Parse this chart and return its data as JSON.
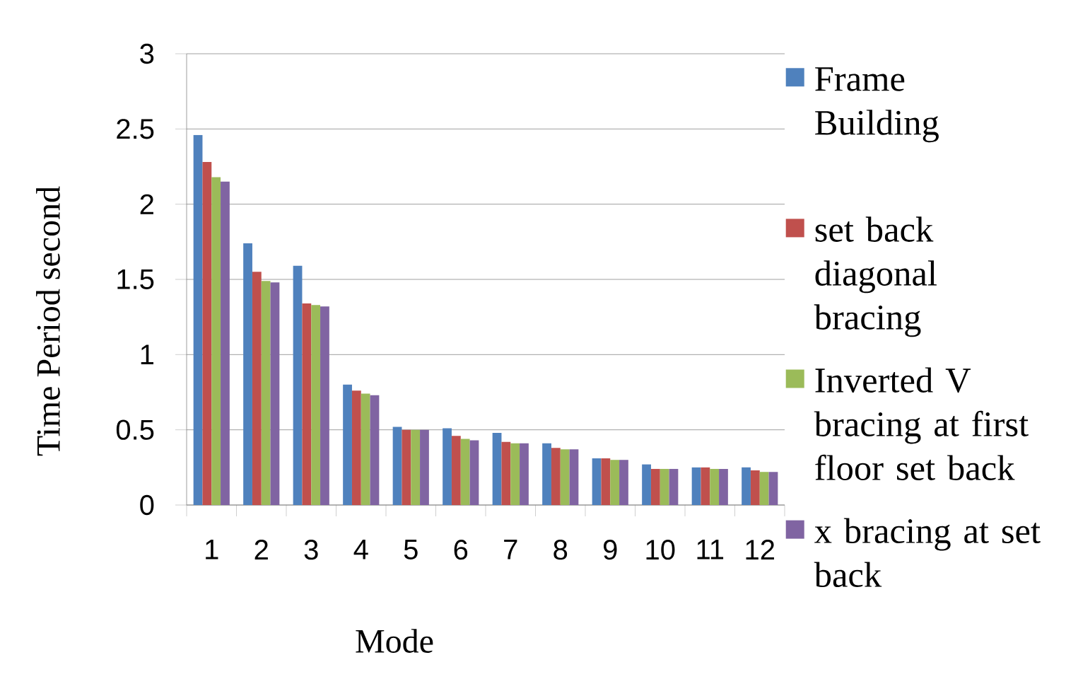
{
  "chart_data": {
    "type": "bar",
    "xlabel": "Mode",
    "ylabel": "Time Period second",
    "categories": [
      "1",
      "2",
      "3",
      "4",
      "5",
      "6",
      "7",
      "8",
      "9",
      "10",
      "11",
      "12"
    ],
    "ylim": [
      0,
      3
    ],
    "yticks": [
      0,
      0.5,
      1,
      1.5,
      2,
      2.5,
      3
    ],
    "grid": "y",
    "legend": "right",
    "series": [
      {
        "name": "Frame Building",
        "color": "#4f81bd",
        "values": [
          2.46,
          1.74,
          1.59,
          0.8,
          0.52,
          0.51,
          0.48,
          0.41,
          0.31,
          0.27,
          0.25,
          0.25
        ]
      },
      {
        "name": "set back diagonal bracing",
        "color": "#c0504d",
        "values": [
          2.28,
          1.55,
          1.34,
          0.76,
          0.5,
          0.46,
          0.42,
          0.38,
          0.31,
          0.24,
          0.25,
          0.23
        ]
      },
      {
        "name": "Inverted V bracing at first floor set back",
        "color": "#9bbb59",
        "values": [
          2.18,
          1.49,
          1.33,
          0.74,
          0.5,
          0.44,
          0.41,
          0.37,
          0.3,
          0.24,
          0.24,
          0.22
        ]
      },
      {
        "name": "x bracing at set back",
        "color": "#8064a2",
        "values": [
          2.15,
          1.48,
          1.32,
          0.73,
          0.5,
          0.43,
          0.41,
          0.37,
          0.3,
          0.24,
          0.24,
          0.22
        ]
      }
    ]
  }
}
